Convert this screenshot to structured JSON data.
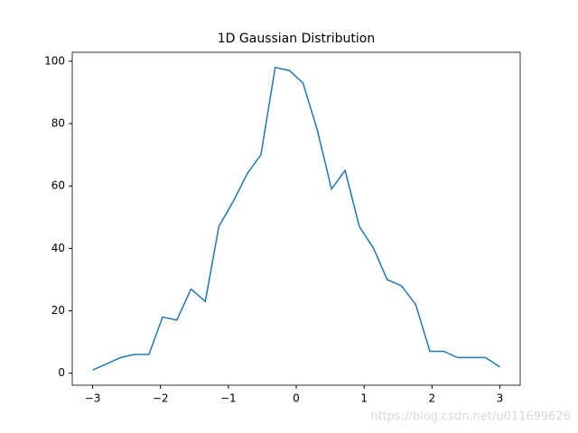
{
  "chart_data": {
    "type": "line",
    "title": "1D Gaussian Distribution",
    "x": [
      -3.0,
      -2.79,
      -2.59,
      -2.38,
      -2.17,
      -1.97,
      -1.76,
      -1.55,
      -1.34,
      -1.14,
      -0.93,
      -0.72,
      -0.52,
      -0.31,
      -0.1,
      0.1,
      0.31,
      0.52,
      0.72,
      0.93,
      1.14,
      1.34,
      1.55,
      1.76,
      1.97,
      2.17,
      2.38,
      2.59,
      2.79,
      3.0
    ],
    "series": [
      {
        "color": "#1f77b4",
        "values": [
          1,
          3,
          5,
          6,
          6,
          18,
          17,
          27,
          23,
          47,
          55,
          64,
          70,
          98,
          97,
          93,
          78,
          59,
          65,
          47,
          40,
          30,
          28,
          22,
          7,
          7,
          5,
          5,
          5,
          2
        ]
      }
    ],
    "xlim": [
      -3.3,
      3.3
    ],
    "xticks": [
      {
        "value": -3,
        "label": "−3"
      },
      {
        "value": -2,
        "label": "−2"
      },
      {
        "value": -1,
        "label": "−1"
      },
      0,
      1,
      2,
      3
    ],
    "ylim": [
      -3.85,
      102.85
    ],
    "yticks": [
      0,
      20,
      40,
      60,
      80,
      100
    ],
    "watermark": "https://blog.csdn.net/u011699626"
  }
}
